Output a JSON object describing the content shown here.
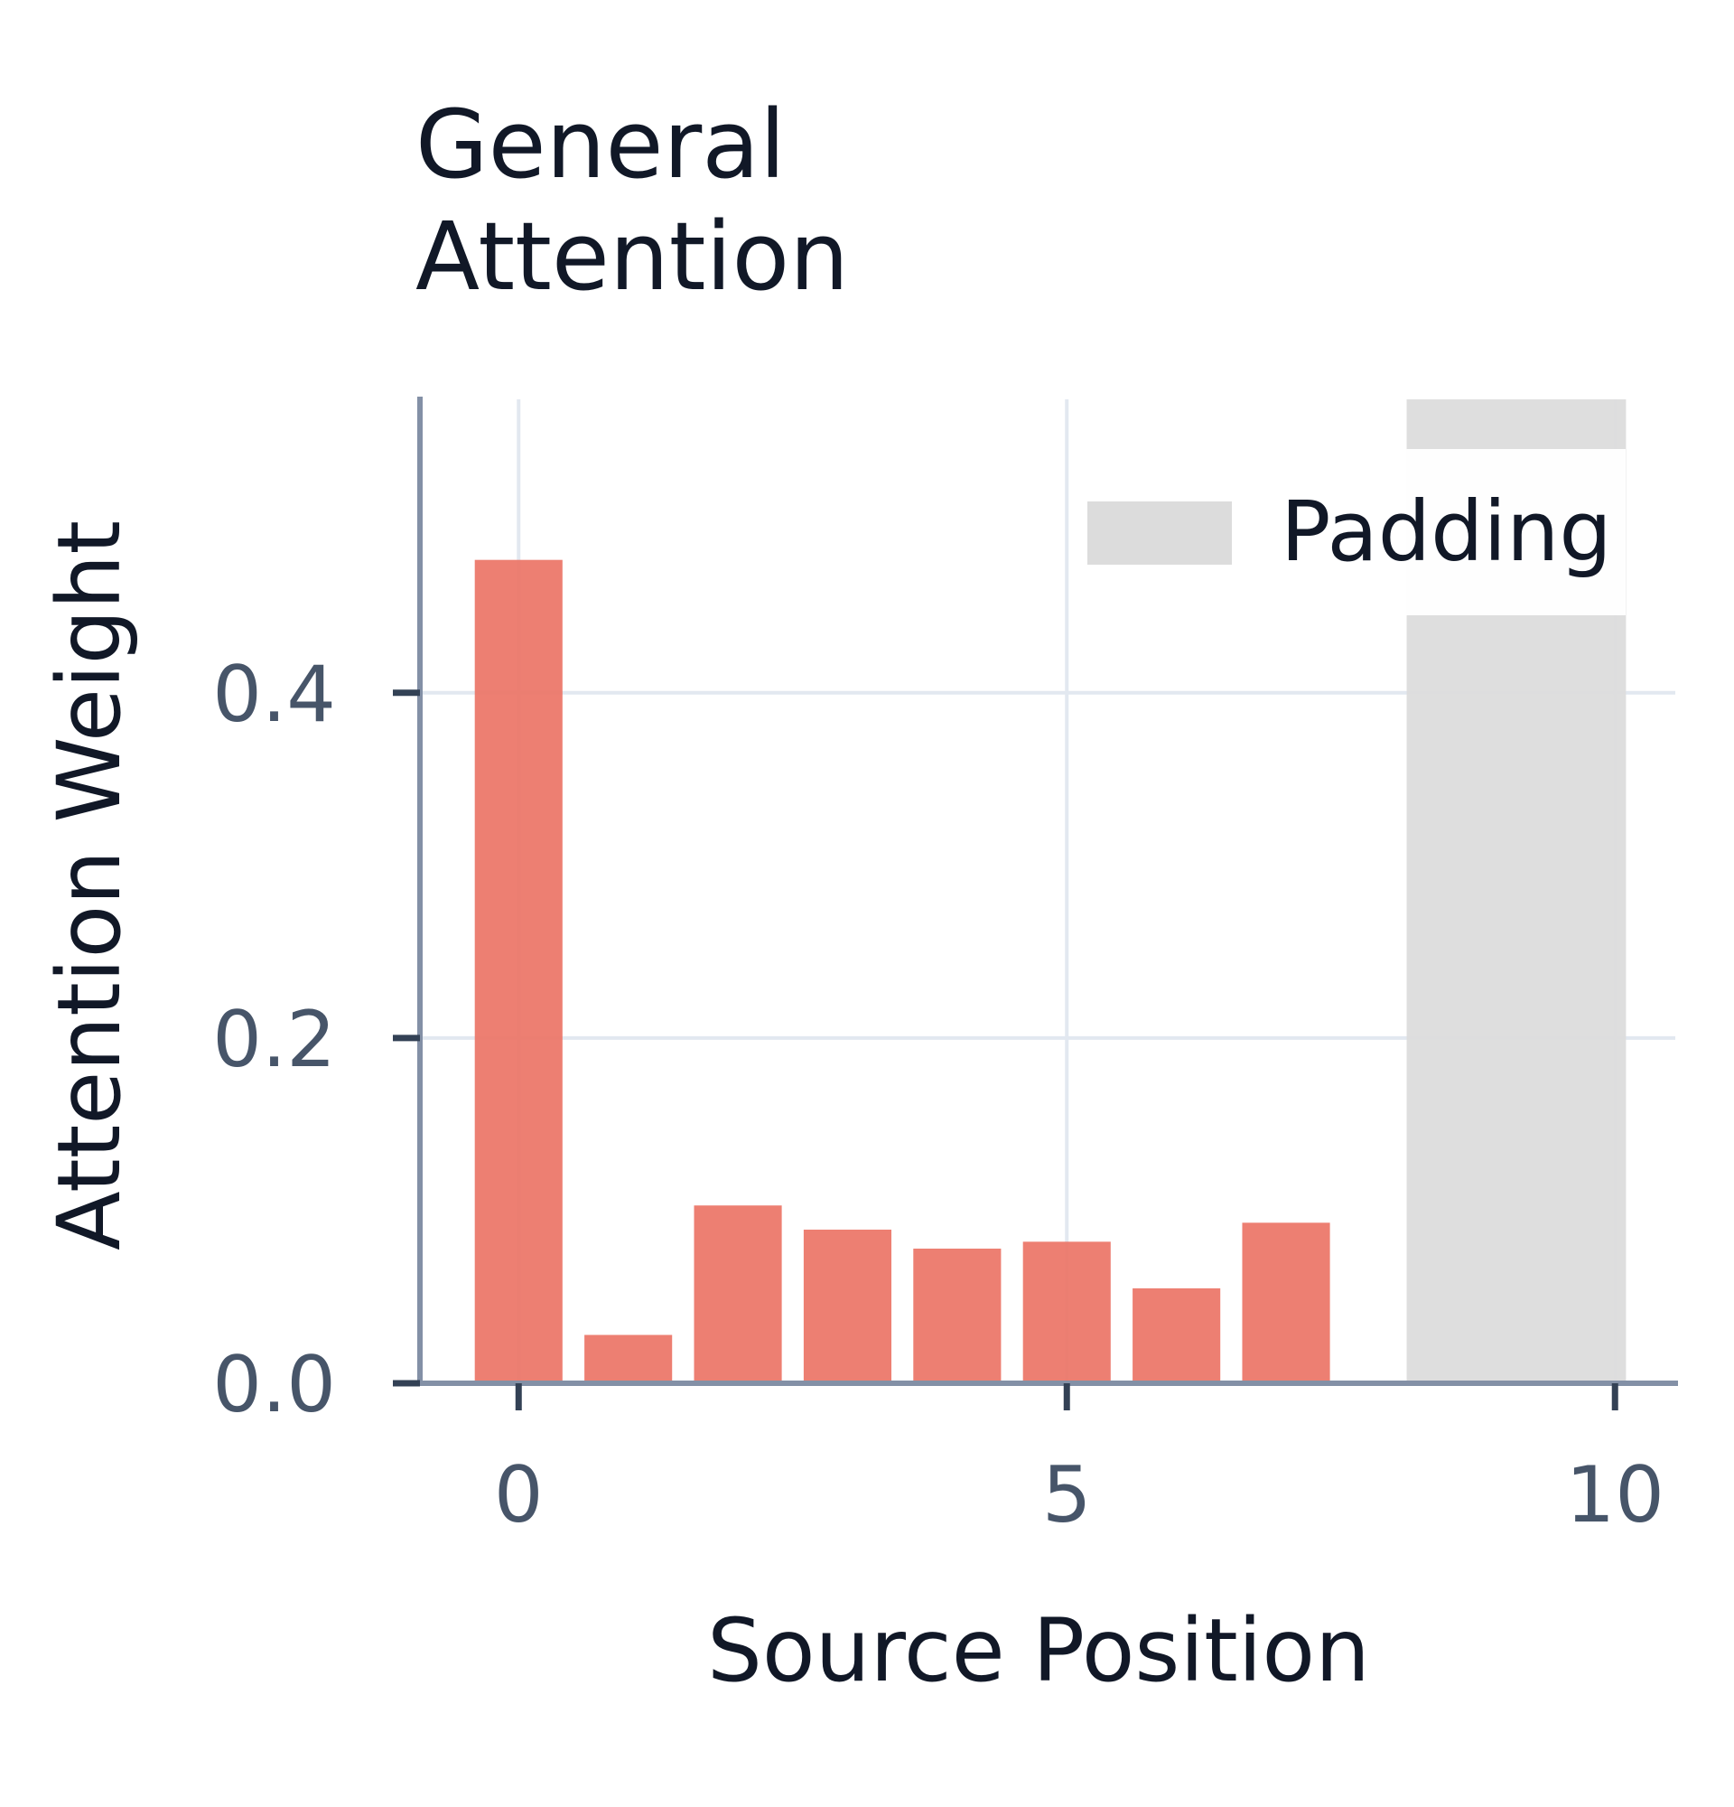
{
  "chart_data": {
    "type": "bar",
    "title": [
      "General",
      "Attention"
    ],
    "xlabel": "Source Position",
    "ylabel": "Attention Weight",
    "x": [
      0,
      1,
      2,
      3,
      4,
      5,
      6,
      7
    ],
    "values": [
      0.477,
      0.028,
      0.103,
      0.089,
      0.078,
      0.082,
      0.055,
      0.093
    ],
    "xlim": [
      -0.9,
      10.55
    ],
    "ylim": [
      0,
      0.57
    ],
    "xticks": [
      "0",
      "5",
      "10"
    ],
    "yticks": [
      "0.0",
      "0.2",
      "0.4"
    ],
    "padding": {
      "label": "Padding",
      "start": 8.1,
      "end": 10.1
    },
    "legend": {
      "entries": [
        "Padding"
      ],
      "placement": "top-right"
    },
    "grid": true,
    "colors": {
      "bar": "#ec7466",
      "padding": "#dcdcdc",
      "grid": "#e2e8f0",
      "axis": "#8390a6",
      "text": "#111827",
      "tick_text": "#475569"
    }
  }
}
